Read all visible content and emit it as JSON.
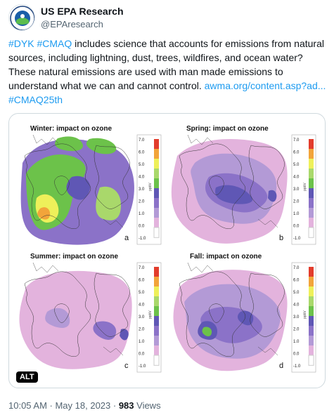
{
  "account": {
    "name": "US EPA Research",
    "handle": "@EPAresearch",
    "avatar_icon": "epa-seal-icon"
  },
  "tweet": {
    "hashtag_dyk": "#DYK",
    "hashtag_cmaq": "#CMAQ",
    "body": " includes science that accounts for emissions from natural sources, including lightning, dust, trees, wildfires, and ocean water? These natural emissions are used with man made emissions to understand what we can and cannot control. ",
    "link": "awma.org/content.asp?ad...",
    "hashtag_cmaq25": "#CMAQ25th"
  },
  "media": {
    "alt_badge": "ALT",
    "colorbar_ticks": [
      "7.0",
      "6.0",
      "5.0",
      "4.0",
      "3.0",
      "2.0",
      "1.0",
      "0.0",
      "-1.0"
    ],
    "colorbar_unit": "ppbV",
    "panels": [
      {
        "title": "Winter: impact on ozone",
        "label": "a"
      },
      {
        "title": "Spring: impact on ozone",
        "label": "b"
      },
      {
        "title": "Summer: impact on ozone",
        "label": "c"
      },
      {
        "title": "Fall: impact on ozone",
        "label": "d"
      }
    ],
    "colors": {
      "pink": "#e3b3dd",
      "lavender": "#b39ad6",
      "purple": "#8b72c8",
      "blue": "#5f57b5",
      "green": "#6cc24a",
      "lightgreen": "#a9d86b",
      "yellow": "#eef05a",
      "orange": "#f2a43a",
      "red": "#e23c2c"
    }
  },
  "footer": {
    "time": "10:05 AM · May 18, 2023 · ",
    "views_count": "983",
    "views_label": " Views"
  }
}
